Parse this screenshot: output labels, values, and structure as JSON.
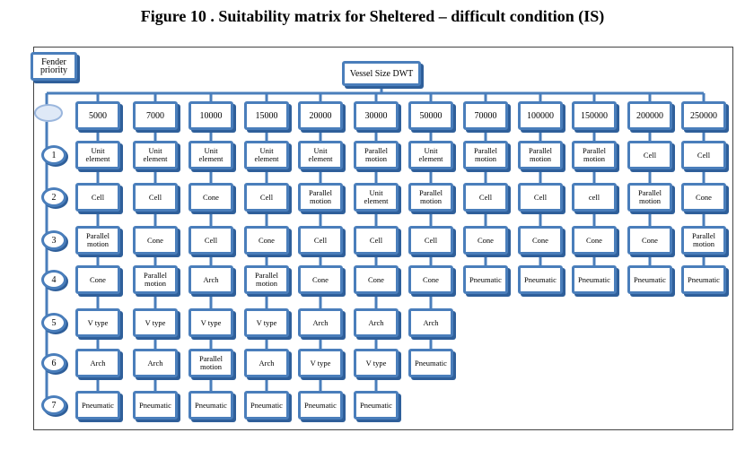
{
  "title": "Figure 10 . Suitability matrix for Sheltered – difficult condition (IS)",
  "row_header_label": "Fender priority",
  "column_header_label": "Vessel Size DWT",
  "vessel_sizes": [
    "5000",
    "7000",
    "10000",
    "15000",
    "20000",
    "30000",
    "50000",
    "70000",
    "100000",
    "150000",
    "200000",
    "250000"
  ],
  "priorities": [
    "1",
    "2",
    "3",
    "4",
    "5",
    "6",
    "7"
  ],
  "matrix": [
    [
      "Unit element",
      "Cell",
      "Parallel motion",
      "Cone",
      "V type",
      "Arch",
      "Pneumatic"
    ],
    [
      "Unit element",
      "Cell",
      "Cone",
      "Parallel motion",
      "V type",
      "Arch",
      "Pneumatic"
    ],
    [
      "Unit element",
      "Cone",
      "Cell",
      "Arch",
      "V type",
      "Parallel motion",
      "Pneumatic"
    ],
    [
      "Unit element",
      "Cell",
      "Cone",
      "Parallel motion",
      "V type",
      "Arch",
      "Pneumatic"
    ],
    [
      "Unit element",
      "Parallel motion",
      "Cell",
      "Cone",
      "Arch",
      "V type",
      "Pneumatic"
    ],
    [
      "Parallel motion",
      "Unit element",
      "Cell",
      "Cone",
      "Arch",
      "V type",
      "Pneumatic"
    ],
    [
      "Unit element",
      "Parallel motion",
      "Cell",
      "Cone",
      "Arch",
      "Pneumatic"
    ],
    [
      "Parallel motion",
      "Cell",
      "Cone",
      "Pneumatic"
    ],
    [
      "Parallel motion",
      "Cell",
      "Cone",
      "Pneumatic"
    ],
    [
      "Parallel motion",
      "cell",
      "Cone",
      "Pneumatic"
    ],
    [
      "Cell",
      "Parallel motion",
      "Cone",
      "Pneumatic"
    ],
    [
      "Cell",
      "Cone",
      "Parallel motion",
      "Pneumatic"
    ]
  ],
  "colors": {
    "box_border": "#4a7ebb",
    "box_shadow": "#2f5f9a",
    "connector": "#4a7ebb"
  }
}
